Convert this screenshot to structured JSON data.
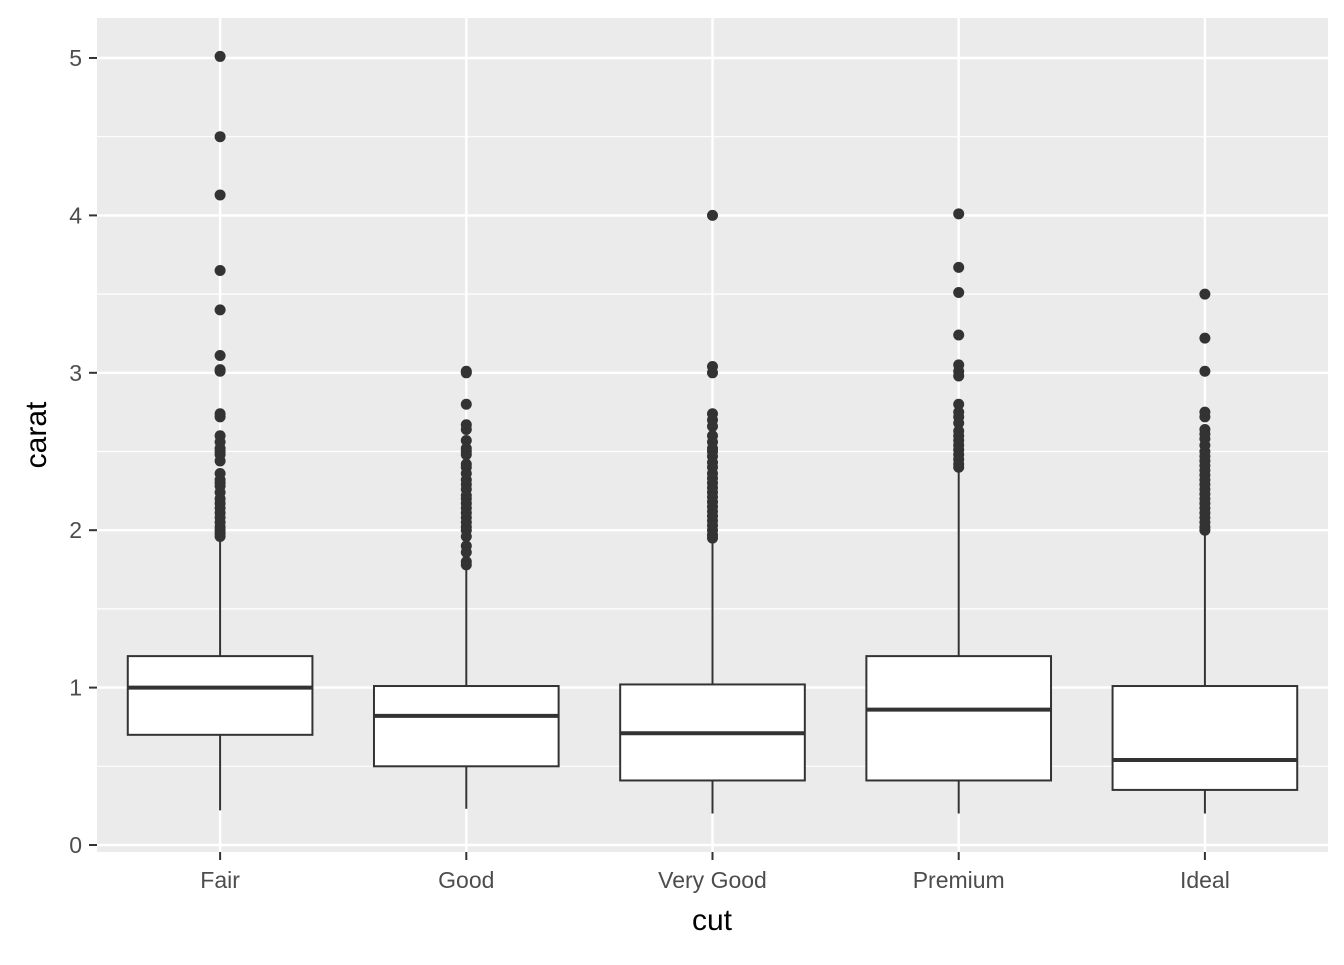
{
  "chart_data": {
    "type": "boxplot",
    "title": "",
    "xlabel": "cut",
    "ylabel": "carat",
    "ylim": [
      -0.2,
      5.25
    ],
    "yticks": [
      0,
      1,
      2,
      3,
      4,
      5
    ],
    "ytick_labels": [
      "0",
      "1",
      "2",
      "3",
      "4",
      "5"
    ],
    "grid": true,
    "categories": [
      "Fair",
      "Good",
      "Very Good",
      "Premium",
      "Ideal"
    ],
    "boxes": [
      {
        "name": "Fair",
        "lower_whisker": 0.22,
        "q1": 0.7,
        "median": 1.0,
        "q3": 1.2,
        "upper_whisker": 1.95,
        "outliers": [
          5.01,
          4.5,
          4.13,
          3.65,
          3.4,
          3.11,
          3.02,
          3.01,
          2.74,
          2.72,
          2.6,
          2.56,
          2.52,
          2.5,
          2.48,
          2.44,
          2.36,
          2.32,
          2.3,
          2.28,
          2.24,
          2.2,
          2.17,
          2.14,
          2.11,
          2.08,
          2.05,
          2.02,
          2.0,
          1.98,
          1.96
        ]
      },
      {
        "name": "Good",
        "lower_whisker": 0.23,
        "q1": 0.5,
        "median": 0.82,
        "q3": 1.01,
        "upper_whisker": 1.76,
        "outliers": [
          3.01,
          3.0,
          2.8,
          2.67,
          2.64,
          2.57,
          2.52,
          2.5,
          2.48,
          2.42,
          2.4,
          2.36,
          2.32,
          2.29,
          2.26,
          2.22,
          2.2,
          2.17,
          2.14,
          2.11,
          2.08,
          2.05,
          2.02,
          2.0,
          1.96,
          1.9,
          1.86,
          1.8,
          1.78
        ]
      },
      {
        "name": "Very Good",
        "lower_whisker": 0.2,
        "q1": 0.41,
        "median": 0.71,
        "q3": 1.02,
        "upper_whisker": 1.93,
        "outliers": [
          4.0,
          3.04,
          3.0,
          2.74,
          2.7,
          2.66,
          2.6,
          2.56,
          2.52,
          2.5,
          2.47,
          2.43,
          2.4,
          2.36,
          2.33,
          2.3,
          2.27,
          2.24,
          2.21,
          2.18,
          2.15,
          2.12,
          2.09,
          2.06,
          2.03,
          2.0,
          1.97,
          1.95
        ]
      },
      {
        "name": "Premium",
        "lower_whisker": 0.2,
        "q1": 0.41,
        "median": 0.86,
        "q3": 1.2,
        "upper_whisker": 2.38,
        "outliers": [
          4.01,
          3.67,
          3.51,
          3.24,
          3.05,
          3.01,
          2.98,
          2.8,
          2.75,
          2.72,
          2.68,
          2.63,
          2.6,
          2.57,
          2.54,
          2.51,
          2.48,
          2.45,
          2.42,
          2.4
        ]
      },
      {
        "name": "Ideal",
        "lower_whisker": 0.2,
        "q1": 0.35,
        "median": 0.54,
        "q3": 1.01,
        "upper_whisker": 1.99,
        "outliers": [
          3.5,
          3.22,
          3.01,
          2.75,
          2.72,
          2.64,
          2.61,
          2.58,
          2.54,
          2.5,
          2.47,
          2.44,
          2.41,
          2.38,
          2.35,
          2.32,
          2.29,
          2.26,
          2.23,
          2.2,
          2.17,
          2.14,
          2.11,
          2.08,
          2.05,
          2.02,
          2.0
        ]
      }
    ]
  }
}
